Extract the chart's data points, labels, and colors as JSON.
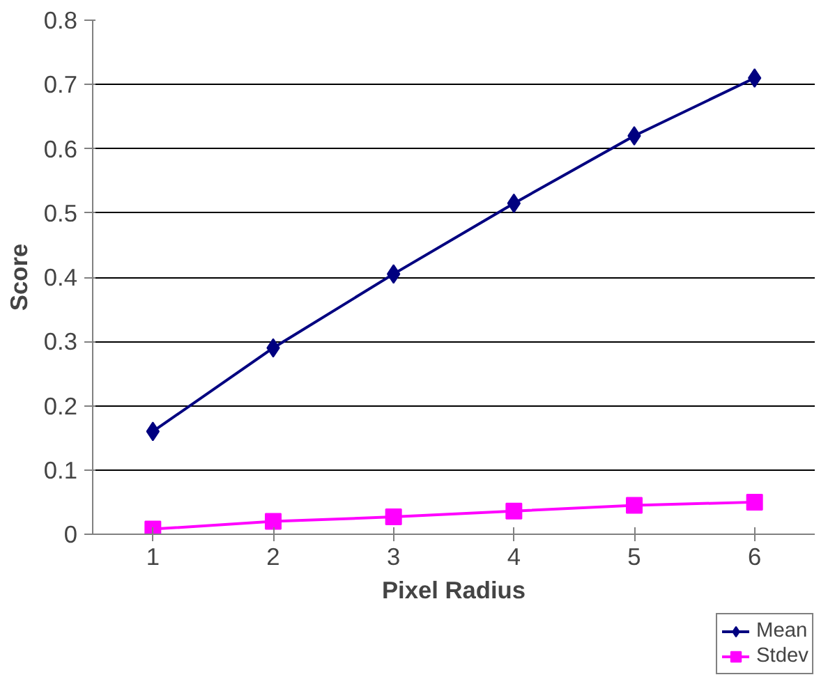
{
  "chart_data": {
    "type": "line",
    "xlabel": "Pixel Radius",
    "ylabel": "Score",
    "categories": [
      "1",
      "2",
      "3",
      "4",
      "5",
      "6"
    ],
    "series": [
      {
        "name": "Mean",
        "color": "#000080",
        "marker": "diamond",
        "values": [
          0.16,
          0.29,
          0.405,
          0.515,
          0.62,
          0.71
        ]
      },
      {
        "name": "Stdev",
        "color": "#ff00ff",
        "marker": "square",
        "values": [
          0.008,
          0.02,
          0.027,
          0.036,
          0.045,
          0.05
        ]
      }
    ],
    "ylim": [
      0,
      0.8
    ],
    "yticks": [
      0,
      0.1,
      0.2,
      0.3,
      0.4,
      0.5,
      0.6,
      0.7,
      0.8
    ],
    "grid": "y",
    "legend": "bottom right"
  }
}
